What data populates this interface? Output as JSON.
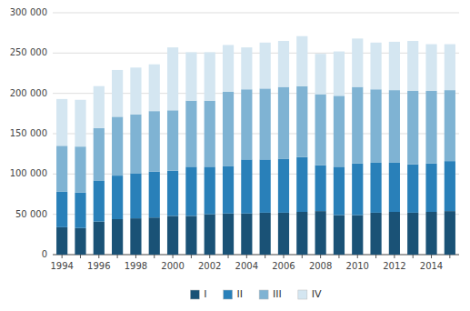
{
  "chart_data": {
    "type": "bar",
    "stacked": true,
    "grid": true,
    "legend": "bottom",
    "categories": [
      "1994",
      null,
      "1996",
      null,
      "1998",
      null,
      "2000",
      null,
      "2002",
      null,
      "2004",
      null,
      "2006",
      null,
      "2008",
      null,
      "2010",
      null,
      "2012",
      null,
      "2014",
      null
    ],
    "series": [
      {
        "name": "I",
        "color": "#1a5276",
        "values": [
          34000,
          33000,
          41000,
          44000,
          45000,
          46000,
          48000,
          48000,
          50000,
          51000,
          51000,
          52000,
          52000,
          53000,
          54000,
          49000,
          49000,
          52000,
          53000,
          52000,
          53000,
          54000
        ]
      },
      {
        "name": "II",
        "color": "#2980b9",
        "values": [
          44000,
          44000,
          51000,
          54000,
          56000,
          57000,
          56000,
          61000,
          59000,
          59000,
          67000,
          66000,
          67000,
          68000,
          57000,
          60000,
          64000,
          62000,
          61000,
          60000,
          60000,
          62000
        ]
      },
      {
        "name": "III",
        "color": "#7fb3d3",
        "values": [
          57000,
          57000,
          65000,
          73000,
          73000,
          75000,
          75000,
          82000,
          82000,
          92000,
          87000,
          88000,
          89000,
          88000,
          88000,
          88000,
          95000,
          91000,
          90000,
          91000,
          90000,
          88000
        ]
      },
      {
        "name": "IV",
        "color": "#d4e6f1",
        "values": [
          58000,
          58000,
          52000,
          58000,
          58000,
          58000,
          78000,
          60000,
          60000,
          58000,
          52000,
          57000,
          57000,
          62000,
          50000,
          55000,
          60000,
          58000,
          60000,
          62000,
          58000,
          57000
        ]
      }
    ],
    "ylim": [
      0,
      300000
    ],
    "yticks": [
      0,
      {
        "value": 50000,
        "label": "50 000"
      },
      {
        "value": 100000,
        "label": "100 000"
      },
      {
        "value": 150000,
        "label": "150 000"
      },
      {
        "value": 200000,
        "label": "200 000"
      },
      {
        "value": 250000,
        "label": "250 000"
      },
      {
        "value": 300000,
        "label": "300 000"
      }
    ]
  }
}
